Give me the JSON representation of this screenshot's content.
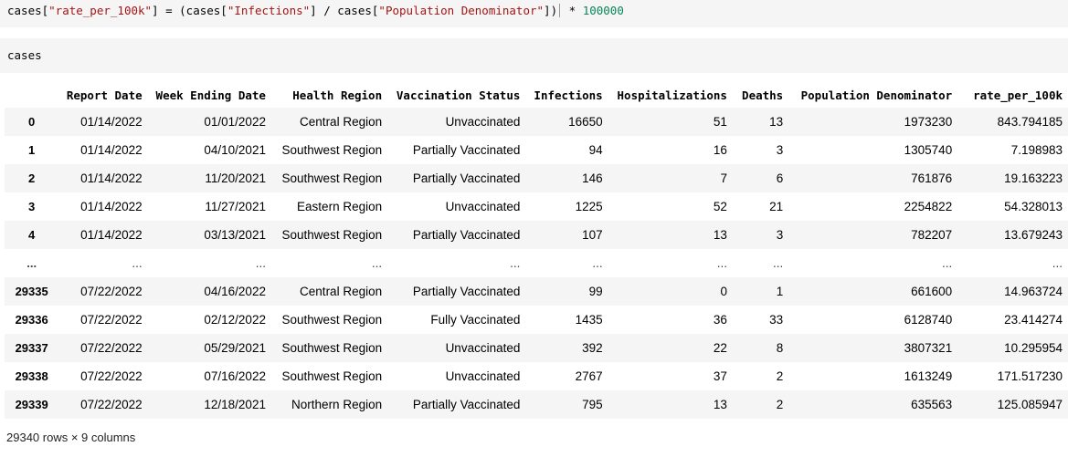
{
  "cell1": {
    "prefix": "cases[",
    "str1": "\"rate_per_100k\"",
    "mid1": "] = (cases[",
    "str2": "\"Infections\"",
    "mid2": "] / cases[",
    "str3": "\"Population Denominator\"",
    "mid3": "])",
    "op": " * ",
    "num": "100000"
  },
  "cell2": {
    "code": "cases"
  },
  "table": {
    "columns": [
      "Report Date",
      "Week Ending Date",
      "Health Region",
      "Vaccination Status",
      "Infections",
      "Hospitalizations",
      "Deaths",
      "Population Denominator",
      "rate_per_100k"
    ],
    "rows": [
      [
        "0",
        "01/14/2022",
        "01/01/2022",
        "Central Region",
        "Unvaccinated",
        "16650",
        "51",
        "13",
        "1973230",
        "843.794185"
      ],
      [
        "1",
        "01/14/2022",
        "04/10/2021",
        "Southwest Region",
        "Partially Vaccinated",
        "94",
        "16",
        "3",
        "1305740",
        "7.198983"
      ],
      [
        "2",
        "01/14/2022",
        "11/20/2021",
        "Southwest Region",
        "Partially Vaccinated",
        "146",
        "7",
        "6",
        "761876",
        "19.163223"
      ],
      [
        "3",
        "01/14/2022",
        "11/27/2021",
        "Eastern Region",
        "Unvaccinated",
        "1225",
        "52",
        "21",
        "2254822",
        "54.328013"
      ],
      [
        "4",
        "01/14/2022",
        "03/13/2021",
        "Southwest Region",
        "Partially Vaccinated",
        "107",
        "13",
        "3",
        "782207",
        "13.679243"
      ],
      [
        "...",
        "...",
        "...",
        "...",
        "...",
        "...",
        "...",
        "...",
        "...",
        "..."
      ],
      [
        "29335",
        "07/22/2022",
        "04/16/2022",
        "Central Region",
        "Partially Vaccinated",
        "99",
        "0",
        "1",
        "661600",
        "14.963724"
      ],
      [
        "29336",
        "07/22/2022",
        "02/12/2022",
        "Southwest Region",
        "Fully Vaccinated",
        "1435",
        "36",
        "33",
        "6128740",
        "23.414274"
      ],
      [
        "29337",
        "07/22/2022",
        "05/29/2021",
        "Southwest Region",
        "Unvaccinated",
        "392",
        "22",
        "8",
        "3807321",
        "10.295954"
      ],
      [
        "29338",
        "07/22/2022",
        "07/16/2022",
        "Southwest Region",
        "Unvaccinated",
        "2767",
        "37",
        "2",
        "1613249",
        "171.517230"
      ],
      [
        "29339",
        "07/22/2022",
        "12/18/2021",
        "Northern Region",
        "Partially Vaccinated",
        "795",
        "13",
        "2",
        "635563",
        "125.085947"
      ]
    ]
  },
  "footer": "29340 rows × 9 columns"
}
